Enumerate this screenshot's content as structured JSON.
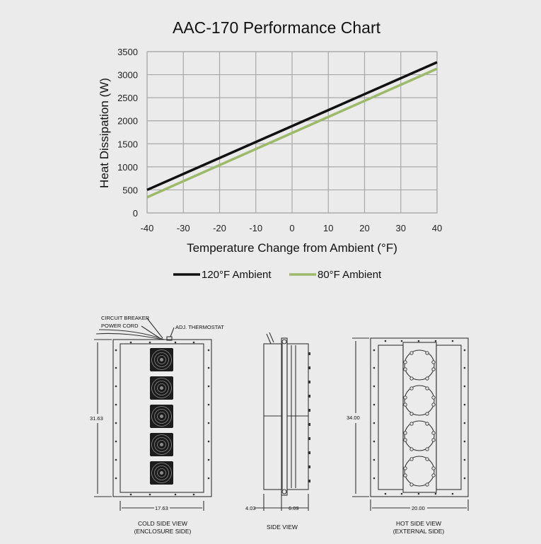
{
  "chart_data": {
    "type": "line",
    "title": "AAC-170 Performance Chart",
    "xlabel": "Temperature Change from Ambient (°F)",
    "ylabel": "Heat Dissipation (W)",
    "xlim": [
      -40,
      40
    ],
    "ylim": [
      0,
      3500
    ],
    "xticks": [
      -40,
      -30,
      -20,
      -10,
      0,
      10,
      20,
      30,
      40
    ],
    "yticks": [
      0,
      500,
      1000,
      1500,
      2000,
      2500,
      3000,
      3500
    ],
    "grid": true,
    "legend_position": "bottom",
    "series": [
      {
        "name": "120°F Ambient",
        "color": "#111111",
        "x": [
          -40,
          40
        ],
        "y": [
          500,
          3270
        ]
      },
      {
        "name": "80°F Ambient",
        "color": "#9cba6a",
        "x": [
          -40,
          40
        ],
        "y": [
          340,
          3130
        ]
      }
    ]
  },
  "drawing": {
    "labels": {
      "circuit_breaker": "CIRCUIT BREAKER",
      "power_cord": "POWER CORD",
      "thermostat": "ADJ. THERMOSTAT"
    },
    "dimensions": {
      "cold_height": "31.63",
      "cold_width": "17.63",
      "side_depth1": "4.03",
      "side_depth2": "6.09",
      "hot_height": "34.00",
      "hot_width": "20.00"
    },
    "views": {
      "cold_line1": "COLD SIDE VIEW",
      "cold_line2": "(ENCLOSURE SIDE)",
      "side": "SIDE VIEW",
      "hot_line1": "HOT SIDE VIEW",
      "hot_line2": "(EXTERNAL SIDE)"
    }
  }
}
